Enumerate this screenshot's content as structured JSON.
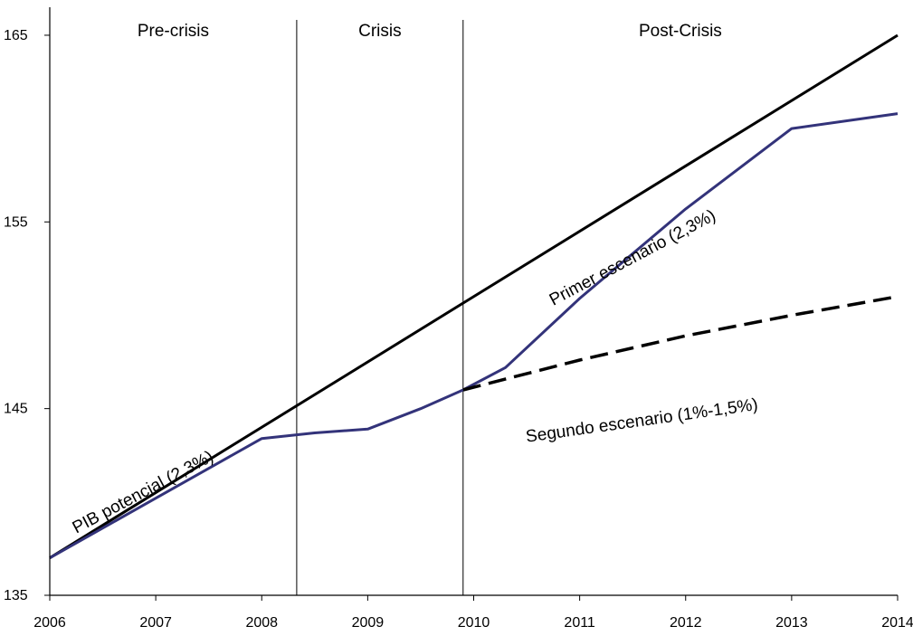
{
  "chart_data": {
    "type": "line",
    "title": "",
    "xlabel": "",
    "ylabel": "",
    "xlim": [
      2006,
      2014
    ],
    "ylim": [
      135,
      166.5
    ],
    "x_ticks": [
      "2006",
      "2007",
      "2008",
      "2009",
      "2010",
      "2011",
      "2012",
      "2013",
      "2014"
    ],
    "y_ticks": [
      "135",
      "145",
      "155",
      "165"
    ],
    "grid": false,
    "periods": [
      {
        "label": "Pre-crisis",
        "start": 2006,
        "end": 2008.33
      },
      {
        "label": "Crisis",
        "start": 2008.33,
        "end": 2009.9
      },
      {
        "label": "Post-Crisis",
        "start": 2009.9,
        "end": 2014
      }
    ],
    "series": [
      {
        "name": "PIB potencial (2,3%)",
        "color": "#000000",
        "dash": "solid",
        "x": [
          2006,
          2014
        ],
        "y": [
          137.0,
          165.0
        ]
      },
      {
        "name": "Primer escenario (2,3%)",
        "color": "#33337a",
        "dash": "solid",
        "x": [
          2006,
          2007,
          2008,
          2008.5,
          2009,
          2009.5,
          2009.9,
          2010.3,
          2011,
          2012,
          2013,
          2014
        ],
        "y": [
          137.0,
          140.2,
          143.4,
          143.7,
          143.9,
          145.0,
          146.0,
          147.2,
          150.9,
          155.7,
          160.0,
          160.8
        ]
      },
      {
        "name": "Segundo escenario (1%-1,5%)",
        "color": "#000000",
        "dash": "dashed",
        "x": [
          2009.9,
          2011,
          2012,
          2013,
          2014
        ],
        "y": [
          146.0,
          147.6,
          148.9,
          150.0,
          151.0
        ]
      }
    ]
  }
}
